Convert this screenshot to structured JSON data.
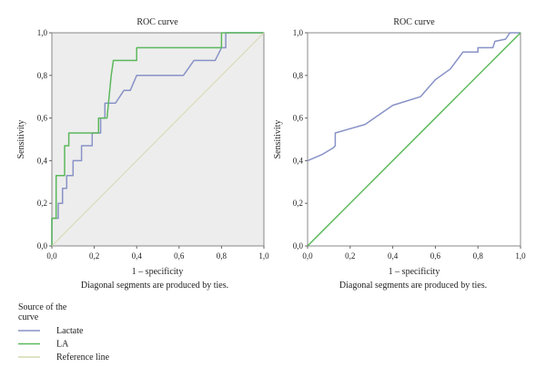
{
  "chart_data": [
    {
      "type": "line",
      "title": "ROC curve",
      "xlabel": "1 – specificity",
      "ylabel": "Sensitivity",
      "footnote": "Diagonal segments are produced by ties.",
      "xlim": [
        0,
        1
      ],
      "ylim": [
        0,
        1
      ],
      "x_ticks": [
        "0,0",
        "0,2",
        "0,4",
        "0,6",
        "0,8",
        "1,0"
      ],
      "y_ticks": [
        "0,0",
        "0,2",
        "0,4",
        "0,6",
        "0,8",
        "1,0"
      ],
      "background_color": "#ededed",
      "series": [
        {
          "name": "Lactate",
          "color": "#8892c6",
          "points": [
            [
              0,
              0
            ],
            [
              0,
              0.13
            ],
            [
              0.03,
              0.13
            ],
            [
              0.03,
              0.2
            ],
            [
              0.05,
              0.2
            ],
            [
              0.05,
              0.27
            ],
            [
              0.07,
              0.27
            ],
            [
              0.07,
              0.33
            ],
            [
              0.1,
              0.33
            ],
            [
              0.1,
              0.4
            ],
            [
              0.14,
              0.4
            ],
            [
              0.14,
              0.47
            ],
            [
              0.19,
              0.47
            ],
            [
              0.19,
              0.53
            ],
            [
              0.23,
              0.53
            ],
            [
              0.23,
              0.6
            ],
            [
              0.25,
              0.6
            ],
            [
              0.25,
              0.67
            ],
            [
              0.3,
              0.67
            ],
            [
              0.34,
              0.73
            ],
            [
              0.37,
              0.73
            ],
            [
              0.4,
              0.8
            ],
            [
              0.62,
              0.8
            ],
            [
              0.67,
              0.87
            ],
            [
              0.77,
              0.87
            ],
            [
              0.8,
              0.93
            ],
            [
              0.82,
              0.93
            ],
            [
              0.82,
              1.0
            ],
            [
              1.0,
              1.0
            ]
          ]
        },
        {
          "name": "LA",
          "color": "#5cb85c",
          "points": [
            [
              0,
              0
            ],
            [
              0,
              0.13
            ],
            [
              0.02,
              0.13
            ],
            [
              0.02,
              0.33
            ],
            [
              0.06,
              0.33
            ],
            [
              0.06,
              0.47
            ],
            [
              0.08,
              0.47
            ],
            [
              0.08,
              0.53
            ],
            [
              0.22,
              0.53
            ],
            [
              0.22,
              0.6
            ],
            [
              0.26,
              0.6
            ],
            [
              0.28,
              0.8
            ],
            [
              0.29,
              0.87
            ],
            [
              0.4,
              0.87
            ],
            [
              0.4,
              0.93
            ],
            [
              0.8,
              0.93
            ],
            [
              0.8,
              1.0
            ],
            [
              1.0,
              1.0
            ]
          ]
        },
        {
          "name": "Reference line",
          "color": "#d6d9b0",
          "points": [
            [
              0,
              0
            ],
            [
              1,
              1
            ]
          ]
        }
      ],
      "legend": {
        "title": "Source of the curve",
        "placement": "bottom-left",
        "items": [
          "Lactate",
          "LA",
          "Reference line"
        ]
      }
    },
    {
      "type": "line",
      "title": "ROC curve",
      "xlabel": "1 – specificity",
      "ylabel": "Sensitivity",
      "footnote": "Diagonal segments are produced by ties.",
      "xlim": [
        0,
        1
      ],
      "ylim": [
        0,
        1
      ],
      "x_ticks": [
        "0,0",
        "0,2",
        "0,4",
        "0,6",
        "0,8",
        "1,0"
      ],
      "y_ticks": [
        "0,0",
        "0,2",
        "0,4",
        "0,6",
        "0,8",
        "1,0"
      ],
      "background_color": "#ffffff",
      "series": [
        {
          "color": "#8892c6",
          "points": [
            [
              0,
              0.4
            ],
            [
              0.07,
              0.43
            ],
            [
              0.12,
              0.46
            ],
            [
              0.13,
              0.47
            ],
            [
              0.13,
              0.53
            ],
            [
              0.27,
              0.57
            ],
            [
              0.4,
              0.66
            ],
            [
              0.53,
              0.7
            ],
            [
              0.6,
              0.78
            ],
            [
              0.67,
              0.83
            ],
            [
              0.73,
              0.91
            ],
            [
              0.8,
              0.91
            ],
            [
              0.8,
              0.93
            ],
            [
              0.87,
              0.93
            ],
            [
              0.88,
              0.96
            ],
            [
              0.93,
              0.97
            ],
            [
              0.95,
              1.0
            ],
            [
              1.0,
              1.0
            ]
          ]
        },
        {
          "color": "#5cb85c",
          "points": [
            [
              0,
              0
            ],
            [
              1,
              1
            ]
          ]
        }
      ]
    }
  ]
}
